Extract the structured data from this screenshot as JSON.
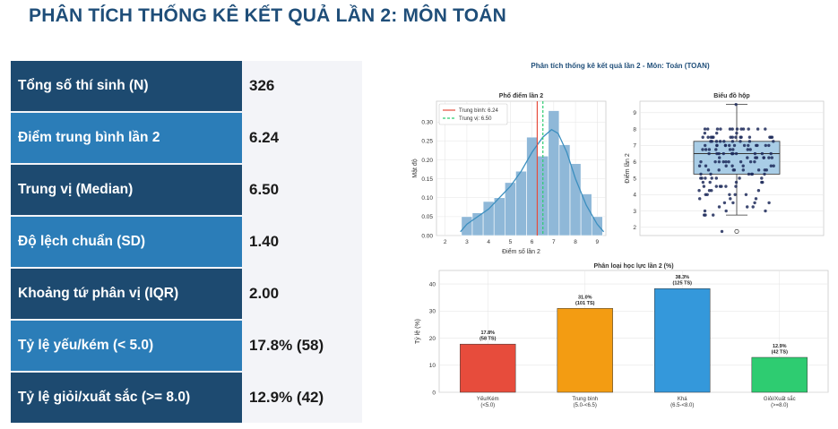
{
  "page_title": "PHÂN TÍCH THỐNG KÊ KẾT QUẢ LẦN 2: MÔN TOÁN",
  "stats": [
    {
      "label": "Tổng số thí sinh (N)",
      "value": "326"
    },
    {
      "label": "Điểm trung bình lần 2",
      "value": "6.24"
    },
    {
      "label": "Trung vị (Median)",
      "value": "6.50"
    },
    {
      "label": "Độ lệch chuẩn (SD)",
      "value": "1.40"
    },
    {
      "label": "Khoảng tứ phân vị (IQR)",
      "value": "2.00"
    },
    {
      "label": "Tỷ lệ yếu/kém (< 5.0)",
      "value": "17.8% (58)"
    },
    {
      "label": "Tỷ lệ giỏi/xuất sắc (>= 8.0)",
      "value": "12.9% (42)"
    }
  ],
  "figure": {
    "suptitle": "Phân tích thống kê kết quả lần 2 - Môn: Toán (TOAN)"
  },
  "colors": {
    "label_dark": "#1d4a70",
    "label_light": "#2b7db8",
    "title": "#1f4e79",
    "hist_bar": "#8fb8d8",
    "kde": "#3c8fbf",
    "mean_line": "#e74c3c",
    "median_line": "#2ecc71"
  },
  "chart_data": [
    {
      "type": "bar",
      "subtype": "histogram",
      "title": "Phổ điểm lần 2",
      "xlabel": "Điểm số lần 2",
      "ylabel": "Mật độ",
      "xlim": [
        1.6,
        9.4
      ],
      "ylim": [
        0,
        0.355
      ],
      "xticks": [
        2,
        3,
        4,
        5,
        6,
        7,
        8,
        9
      ],
      "yticks": [
        0.0,
        0.05,
        0.1,
        0.15,
        0.2,
        0.25,
        0.3
      ],
      "bin_width": 0.5,
      "bins": [
        {
          "x0": 2.75,
          "value": 0.05
        },
        {
          "x0": 3.25,
          "value": 0.06
        },
        {
          "x0": 3.75,
          "value": 0.09
        },
        {
          "x0": 4.25,
          "value": 0.1
        },
        {
          "x0": 4.75,
          "value": 0.14
        },
        {
          "x0": 5.25,
          "value": 0.17
        },
        {
          "x0": 5.75,
          "value": 0.26
        },
        {
          "x0": 6.25,
          "value": 0.21
        },
        {
          "x0": 6.75,
          "value": 0.33
        },
        {
          "x0": 7.25,
          "value": 0.24
        },
        {
          "x0": 7.75,
          "value": 0.19
        },
        {
          "x0": 8.25,
          "value": 0.11
        },
        {
          "x0": 8.75,
          "value": 0.05
        }
      ],
      "kde": [
        [
          2.7,
          0.01
        ],
        [
          3.0,
          0.03
        ],
        [
          3.5,
          0.05
        ],
        [
          4.0,
          0.07
        ],
        [
          4.5,
          0.1
        ],
        [
          5.0,
          0.13
        ],
        [
          5.5,
          0.17
        ],
        [
          6.0,
          0.22
        ],
        [
          6.5,
          0.26
        ],
        [
          6.9,
          0.28
        ],
        [
          7.2,
          0.27
        ],
        [
          7.6,
          0.22
        ],
        [
          8.0,
          0.15
        ],
        [
          8.5,
          0.08
        ],
        [
          9.0,
          0.03
        ],
        [
          9.3,
          0.01
        ]
      ],
      "mean": 6.24,
      "median": 6.5,
      "legend": [
        {
          "label": "Trung bình: 6.24",
          "style": "solid",
          "color": "#e74c3c"
        },
        {
          "label": "Trung vị: 6.50",
          "style": "dashed",
          "color": "#2ecc71"
        }
      ],
      "legend_position": "top-left",
      "grid": true
    },
    {
      "type": "scatter",
      "subtype": "boxplot",
      "title": "Biểu đồ hộp",
      "ylabel": "Điểm lần 2",
      "ylim": [
        1.5,
        9.7
      ],
      "yticks": [
        2,
        3,
        4,
        5,
        6,
        7,
        8,
        9
      ],
      "box": {
        "q1": 5.25,
        "median": 6.5,
        "q3": 7.25,
        "whisker_low": 2.75,
        "whisker_high": 9.5
      },
      "outliers": [
        1.75
      ],
      "points": [
        9.5,
        8.0,
        8.0,
        8.0,
        8.0,
        8.0,
        8.0,
        8.0,
        8.0,
        8.0,
        8.0,
        8.0,
        8.0,
        7.75,
        7.75,
        7.75,
        7.5,
        7.5,
        7.5,
        7.5,
        7.5,
        7.5,
        7.5,
        7.5,
        7.5,
        7.5,
        7.5,
        7.5,
        7.5,
        7.5,
        7.25,
        7.25,
        7.25,
        7.25,
        7.25,
        7.25,
        7.25,
        7.25,
        7.25,
        7.0,
        7.0,
        7.0,
        7.0,
        7.0,
        7.0,
        7.0,
        7.0,
        7.0,
        7.0,
        7.0,
        7.0,
        7.0,
        6.75,
        6.75,
        6.75,
        6.75,
        6.75,
        6.75,
        6.75,
        6.75,
        6.5,
        6.5,
        6.5,
        6.5,
        6.5,
        6.5,
        6.5,
        6.5,
        6.5,
        6.5,
        6.5,
        6.5,
        6.25,
        6.25,
        6.25,
        6.25,
        6.25,
        6.25,
        6.25,
        6.25,
        6.0,
        6.0,
        6.0,
        6.0,
        6.0,
        6.0,
        6.0,
        6.0,
        6.0,
        5.75,
        5.75,
        5.75,
        5.75,
        5.75,
        5.75,
        5.75,
        5.5,
        5.5,
        5.5,
        5.5,
        5.5,
        5.5,
        5.5,
        5.5,
        5.25,
        5.25,
        5.25,
        5.25,
        5.25,
        5.25,
        5.0,
        5.0,
        5.0,
        5.0,
        5.0,
        5.0,
        5.0,
        4.75,
        4.75,
        4.75,
        4.75,
        4.75,
        4.5,
        4.5,
        4.5,
        4.5,
        4.5,
        4.5,
        4.25,
        4.25,
        4.25,
        4.25,
        4.0,
        4.0,
        4.0,
        4.0,
        4.0,
        3.75,
        3.75,
        3.75,
        3.5,
        3.5,
        3.5,
        3.5,
        3.25,
        3.25,
        3.25,
        3.0,
        3.0,
        3.0,
        2.75,
        2.75,
        2.75,
        1.75
      ],
      "grid": true
    },
    {
      "type": "bar",
      "title": "Phân loại học lực lần 2 (%)",
      "ylabel": "Tỷ lệ (%)",
      "ylim": [
        0,
        45
      ],
      "yticks": [
        0,
        10,
        20,
        30,
        40
      ],
      "categories": [
        "Yếu/Kém\n(<5.0)",
        "Trung bình\n(5.0-<6.5)",
        "Khá\n(6.5-<8.0)",
        "Giỏi/Xuất sắc\n(>=8.0)"
      ],
      "values": [
        17.8,
        31.0,
        38.3,
        12.9
      ],
      "data_labels": [
        "17.8%\n(58 TS)",
        "31.0%\n(101 TS)",
        "38.3%\n(125 TS)",
        "12.9%\n(42 TS)"
      ],
      "colors": [
        "#e74c3c",
        "#f39c12",
        "#3498db",
        "#2ecc71"
      ],
      "grid": true
    }
  ]
}
